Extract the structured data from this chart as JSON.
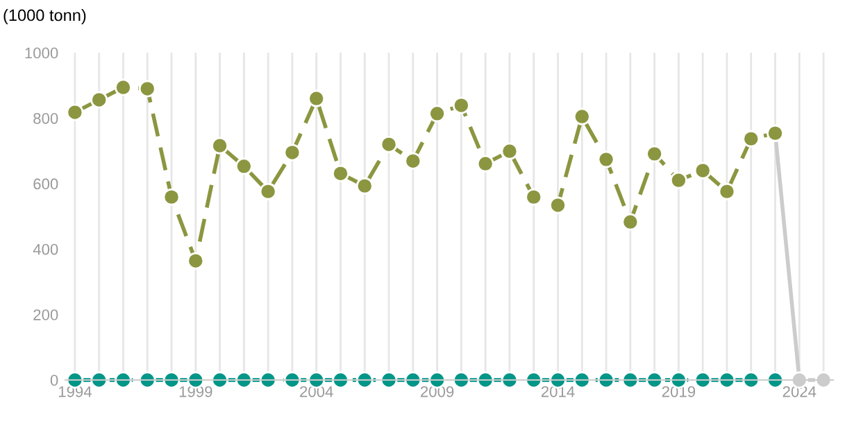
{
  "chart_data": {
    "type": "line",
    "title": "(1000 tonn)",
    "ylim": [
      0,
      1000
    ],
    "yticks": [
      0,
      200,
      400,
      600,
      800,
      1000
    ],
    "xlim": [
      1993.6,
      2025.4
    ],
    "xticks": [
      1994,
      {
        "value": 1995,
        "label": null
      },
      {
        "value": 1996,
        "label": null
      },
      {
        "value": 1997,
        "label": null
      },
      {
        "value": 1998,
        "label": null
      },
      1999,
      {
        "value": 2000,
        "label": null
      },
      {
        "value": 2001,
        "label": null
      },
      {
        "value": 2002,
        "label": null
      },
      {
        "value": 2003,
        "label": null
      },
      2004,
      {
        "value": 2005,
        "label": null
      },
      {
        "value": 2006,
        "label": null
      },
      {
        "value": 2007,
        "label": null
      },
      {
        "value": 2008,
        "label": null
      },
      2009,
      {
        "value": 2010,
        "label": null
      },
      {
        "value": 2011,
        "label": null
      },
      {
        "value": 2012,
        "label": null
      },
      {
        "value": 2013,
        "label": null
      },
      2014,
      {
        "value": 2015,
        "label": null
      },
      {
        "value": 2016,
        "label": null
      },
      {
        "value": 2017,
        "label": null
      },
      {
        "value": 2018,
        "label": null
      },
      2019,
      {
        "value": 2020,
        "label": null
      },
      {
        "value": 2021,
        "label": null
      },
      {
        "value": 2022,
        "label": null
      },
      {
        "value": 2023,
        "label": null
      },
      2024,
      {
        "value": 2025,
        "label": null
      }
    ],
    "grid": "x",
    "marker": "circle",
    "legend": false,
    "series": [
      {
        "color": "#cccccc",
        "line_style": "solid",
        "x": [
          2023,
          2024,
          2025
        ],
        "values": [
          754,
          0,
          0
        ]
      },
      {
        "color": "#009688",
        "line_style": "dashed",
        "x": [
          1994,
          1995,
          1996,
          1997,
          1998,
          1999,
          2000,
          2001,
          2002,
          2003,
          2004,
          2005,
          2006,
          2007,
          2008,
          2009,
          2010,
          2011,
          2012,
          2013,
          2014,
          2015,
          2016,
          2017,
          2018,
          2019,
          2020,
          2021,
          2022,
          2023
        ],
        "values": [
          0,
          0,
          0,
          0,
          0,
          0,
          0,
          0,
          0,
          0,
          0,
          0,
          0,
          0,
          0,
          0,
          0,
          0,
          0,
          0,
          0,
          0,
          0,
          0,
          0,
          0,
          0,
          0,
          0,
          0
        ]
      },
      {
        "color": "#8c9640",
        "line_style": "dashed",
        "x": [
          1994,
          1995,
          1996,
          1997,
          1998,
          1999,
          2000,
          2001,
          2002,
          2003,
          2004,
          2005,
          2006,
          2007,
          2008,
          2009,
          2010,
          2011,
          2012,
          2013,
          2014,
          2015,
          2016,
          2017,
          2018,
          2019,
          2020,
          2021,
          2022,
          2023
        ],
        "values": [
          818,
          856,
          894,
          890,
          559,
          364,
          716,
          653,
          576,
          695,
          860,
          631,
          593,
          720,
          669,
          814,
          839,
          661,
          699,
          559,
          534,
          805,
          674,
          483,
          691,
          610,
          640,
          576,
          737,
          754
        ]
      }
    ]
  }
}
